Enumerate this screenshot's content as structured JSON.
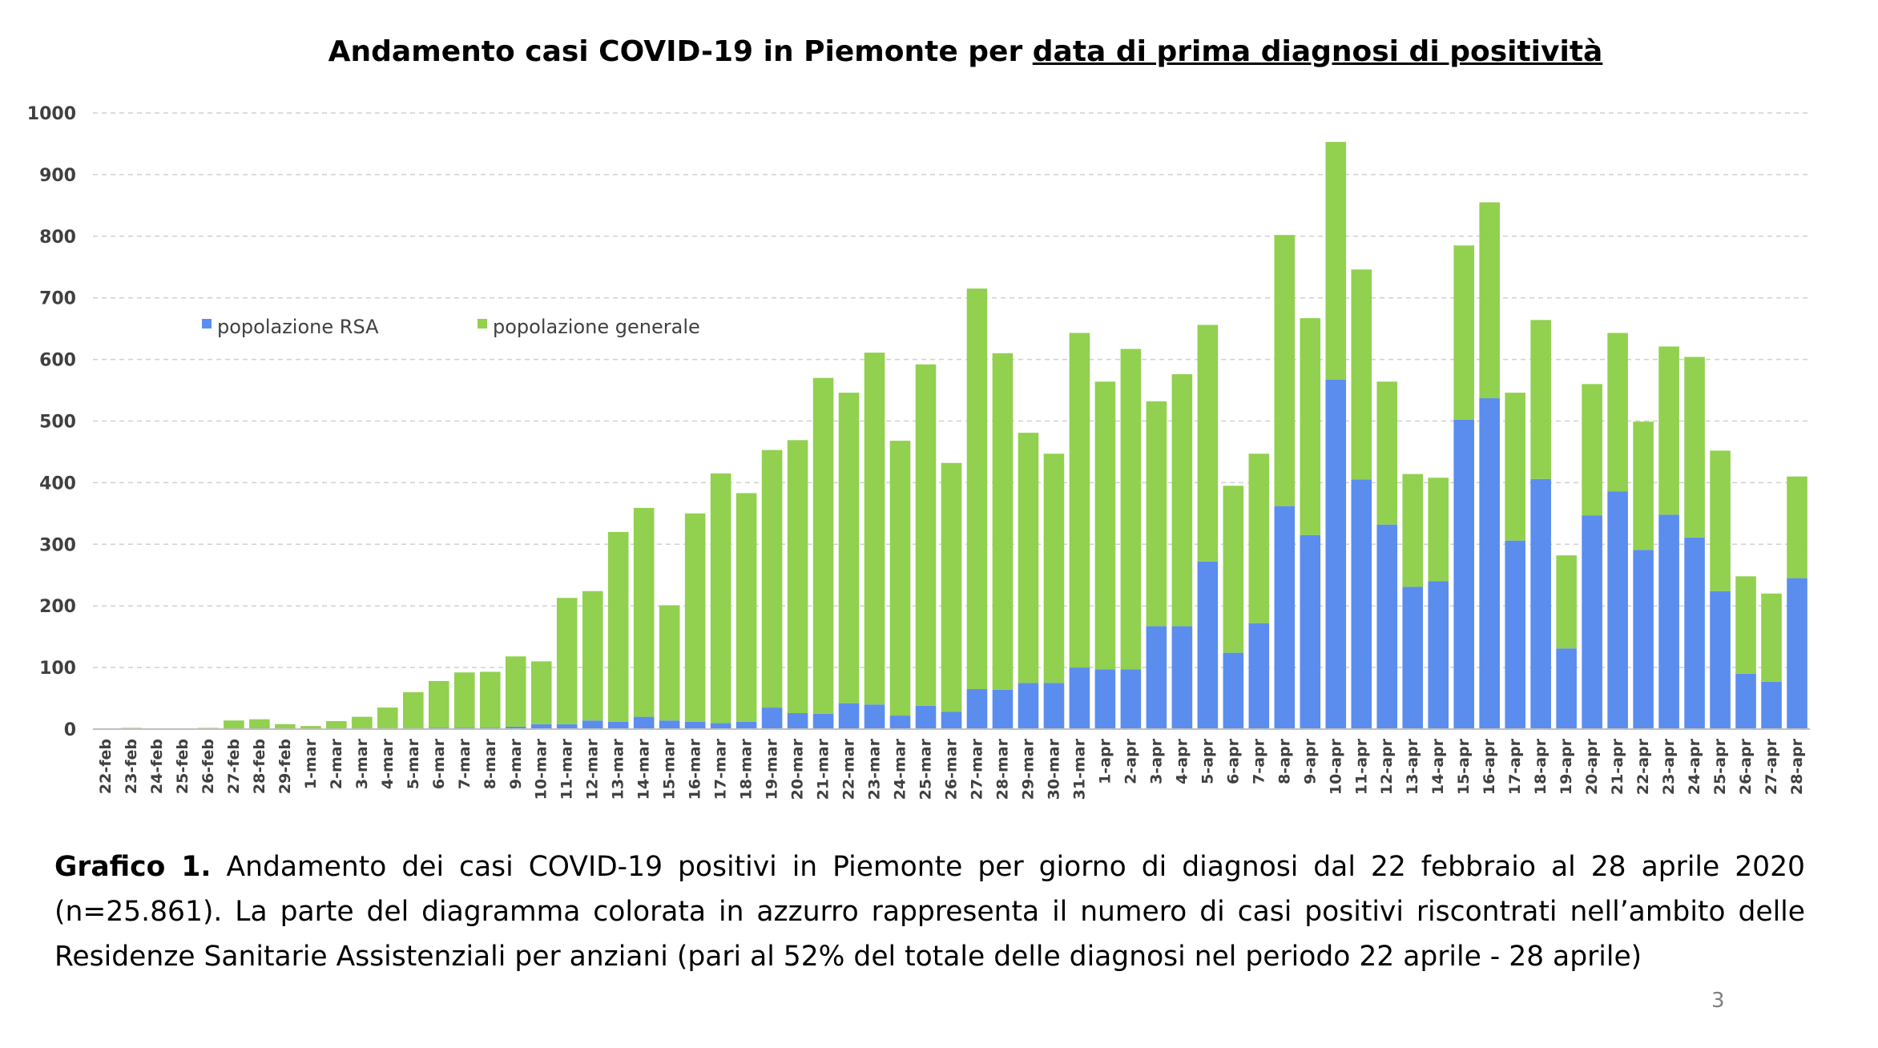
{
  "chart_data": {
    "type": "bar",
    "stacked": true,
    "title_parts": [
      "Andamento casi COVID-19 in Piemonte per",
      "data di prima diagnosi di positività"
    ],
    "categories": [
      "22-feb",
      "23-feb",
      "24-feb",
      "25-feb",
      "26-feb",
      "27-feb",
      "28-feb",
      "29-feb",
      "1-mar",
      "2-mar",
      "3-mar",
      "4-mar",
      "5-mar",
      "6-mar",
      "7-mar",
      "8-mar",
      "9-mar",
      "10-mar",
      "11-mar",
      "12-mar",
      "13-mar",
      "14-mar",
      "15-mar",
      "16-mar",
      "17-mar",
      "18-mar",
      "19-mar",
      "20-mar",
      "21-mar",
      "22-mar",
      "23-mar",
      "24-mar",
      "25-mar",
      "26-mar",
      "27-mar",
      "28-mar",
      "29-mar",
      "30-mar",
      "31-mar",
      "1-apr",
      "2-apr",
      "3-apr",
      "4-apr",
      "5-apr",
      "6-apr",
      "7-apr",
      "8-apr",
      "9-apr",
      "10-apr",
      "11-apr",
      "12-apr",
      "13-apr",
      "14-apr",
      "15-apr",
      "16-apr",
      "17-apr",
      "18-apr",
      "19-apr",
      "20-apr",
      "21-apr",
      "22-apr",
      "23-apr",
      "24-apr",
      "25-apr",
      "26-apr",
      "27-apr",
      "28-apr"
    ],
    "series": [
      {
        "name": "popolazione RSA",
        "color": "#5b8def",
        "values": [
          0,
          0,
          0,
          0,
          0,
          0,
          0,
          0,
          0,
          0,
          0,
          0,
          0,
          2,
          2,
          2,
          4,
          8,
          8,
          14,
          12,
          20,
          14,
          12,
          10,
          12,
          35,
          26,
          25,
          42,
          40,
          22,
          38,
          28,
          65,
          64,
          75,
          75,
          100,
          97,
          97,
          167,
          167,
          272,
          124,
          172,
          362,
          315,
          567,
          405,
          332,
          231,
          240,
          502,
          537,
          306,
          406,
          131,
          347,
          386,
          291,
          348,
          311,
          224,
          90,
          77,
          245
        ]
      },
      {
        "name": "popolazione generale",
        "color": "#92d050",
        "values": [
          1,
          2,
          1,
          1,
          2,
          14,
          16,
          8,
          5,
          13,
          20,
          35,
          60,
          76,
          90,
          91,
          114,
          102,
          205,
          210,
          308,
          339,
          187,
          338,
          405,
          371,
          418,
          443,
          545,
          504,
          571,
          446,
          554,
          404,
          650,
          546,
          406,
          372,
          543,
          467,
          520,
          365,
          409,
          384,
          271,
          275,
          440,
          352,
          386,
          341,
          232,
          183,
          168,
          283,
          318,
          240,
          258,
          151,
          213,
          257,
          208,
          273,
          293,
          228,
          158,
          143,
          165
        ]
      }
    ],
    "ylim": [
      0,
      1000
    ],
    "yticks": [
      0,
      100,
      200,
      300,
      400,
      500,
      600,
      700,
      800,
      900,
      1000
    ],
    "gridlines": true,
    "legend_position": "upper-left"
  },
  "caption": {
    "label": "Grafico 1.",
    "text": "Andamento dei casi COVID-19 positivi in Piemonte per giorno di diagnosi dal 22 febbraio al 28 aprile 2020 (n=25.861). La parte del diagramma colorata in azzurro rappresenta il numero di casi positivi riscontrati nell’ambito delle Residenze Sanitarie Assistenziali per anziani (pari al 52% del totale delle diagnosi nel periodo 22 aprile - 28 aprile)"
  },
  "page_number": "3"
}
